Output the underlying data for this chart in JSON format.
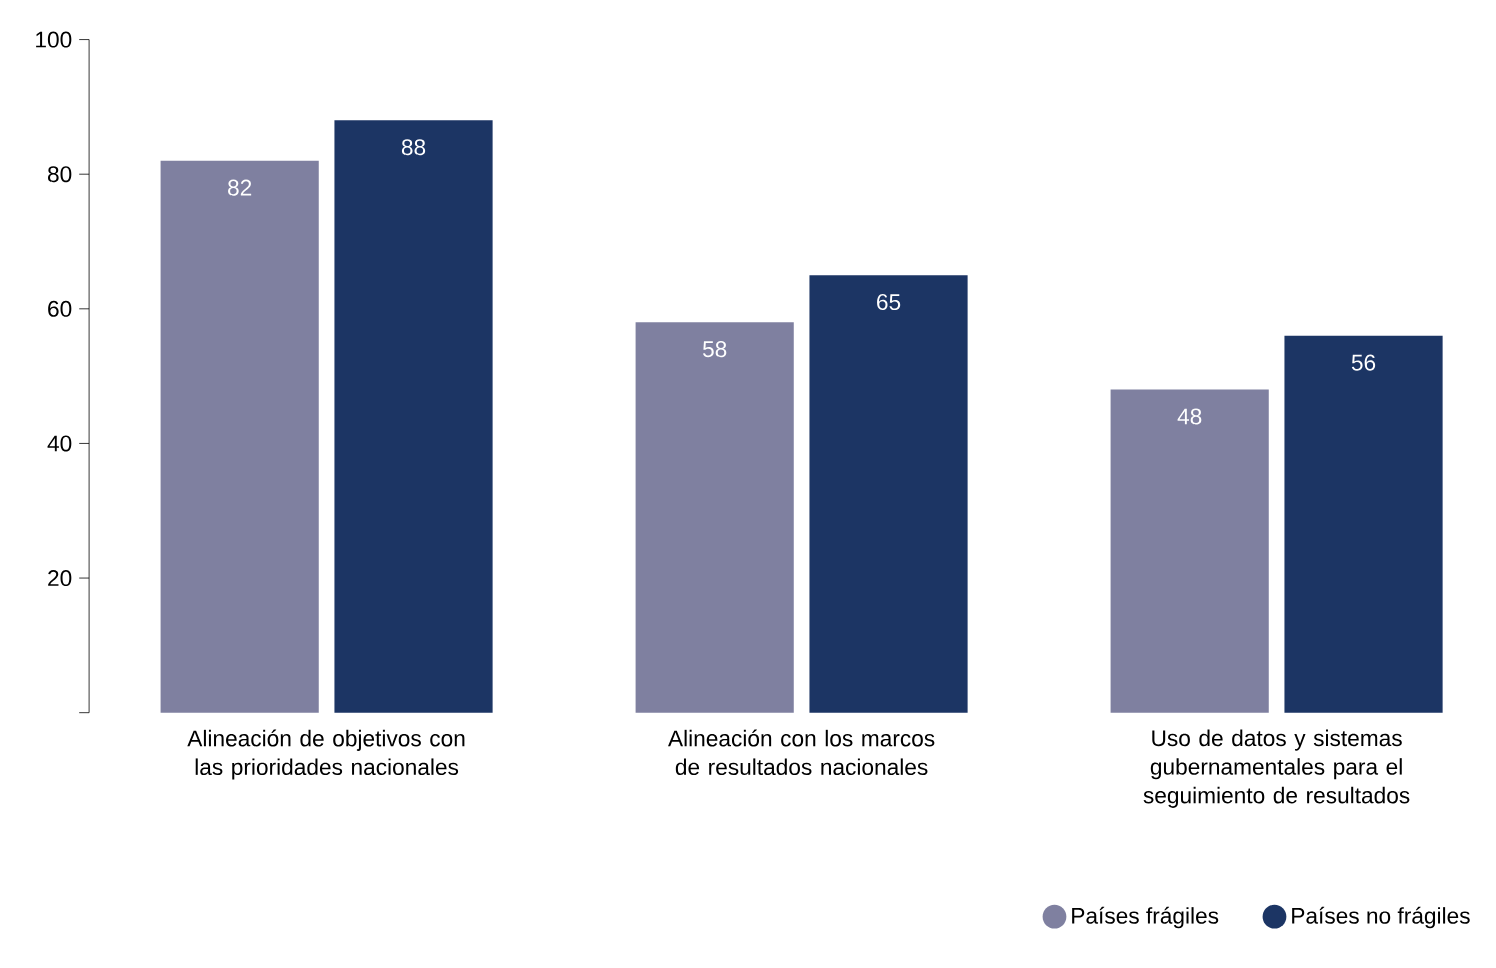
{
  "chart_data": {
    "type": "bar",
    "categories": [
      "Alineación de objetivos con las prioridades nacionales",
      "Alineación con los marcos de resultados nacionales",
      "Uso de datos y sistemas gubernamentales para el seguimiento de resultados"
    ],
    "series": [
      {
        "name": "Países frágiles",
        "color": "#7f80a0",
        "values": [
          82,
          58,
          48
        ]
      },
      {
        "name": "Países no frágiles",
        "color": "#1c3564",
        "values": [
          88,
          65,
          56
        ]
      }
    ],
    "ylim": [
      0,
      100
    ],
    "yticks": [
      {
        "value": 0,
        "label": null
      },
      20,
      40,
      60,
      80,
      100
    ],
    "grid": false,
    "legend": "bottom right",
    "data_labels": true
  }
}
